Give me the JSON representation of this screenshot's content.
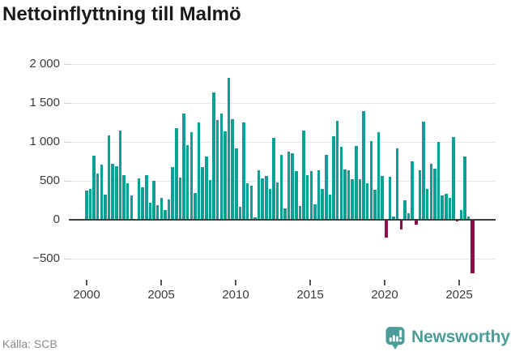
{
  "title": "Nettoinflyttning till Malmö",
  "source": "Källa: SCB",
  "brand": {
    "name": "Newsworthy"
  },
  "colors": {
    "positive_bar": "#0aa096",
    "negative_bar": "#8b1049",
    "grid": "#e7e7e7",
    "zero_line": "#3d3d3d",
    "axis_text": "#3c3c3c",
    "title_text": "#1a1a1a",
    "source_text": "#8a8a8a",
    "brand_teal": "#4d9c97"
  },
  "y_axis": {
    "labels": [
      "2 000",
      "1 500",
      "1 000",
      "500",
      "0",
      "−500"
    ],
    "values": [
      2000,
      1500,
      1000,
      500,
      0,
      -500
    ]
  },
  "x_axis": {
    "labels": [
      "2000",
      "2005",
      "2010",
      "2015",
      "2020",
      "2025"
    ],
    "tick_quarter_indices": [
      0,
      20,
      40,
      60,
      80,
      100
    ]
  },
  "chart_data": {
    "type": "bar",
    "title": "Nettoinflyttning till Malmö",
    "xlabel": "",
    "ylabel": "",
    "ylim": [
      -750,
      2000
    ],
    "grid": "horizontal",
    "legend": "none",
    "source": "SCB",
    "categories": [
      "2000Q1",
      "2000Q2",
      "2000Q3",
      "2000Q4",
      "2001Q1",
      "2001Q2",
      "2001Q3",
      "2001Q4",
      "2002Q1",
      "2002Q2",
      "2002Q3",
      "2002Q4",
      "2003Q1",
      "2003Q2",
      "2003Q3",
      "2003Q4",
      "2004Q1",
      "2004Q2",
      "2004Q3",
      "2004Q4",
      "2005Q1",
      "2005Q2",
      "2005Q3",
      "2005Q4",
      "2006Q1",
      "2006Q2",
      "2006Q3",
      "2006Q4",
      "2007Q1",
      "2007Q2",
      "2007Q3",
      "2007Q4",
      "2008Q1",
      "2008Q2",
      "2008Q3",
      "2008Q4",
      "2009Q1",
      "2009Q2",
      "2009Q3",
      "2009Q4",
      "2010Q1",
      "2010Q2",
      "2010Q3",
      "2010Q4",
      "2011Q1",
      "2011Q2",
      "2011Q3",
      "2011Q4",
      "2012Q1",
      "2012Q2",
      "2012Q3",
      "2012Q4",
      "2013Q1",
      "2013Q2",
      "2013Q3",
      "2013Q4",
      "2014Q1",
      "2014Q2",
      "2014Q3",
      "2014Q4",
      "2015Q1",
      "2015Q2",
      "2015Q3",
      "2015Q4",
      "2016Q1",
      "2016Q2",
      "2016Q3",
      "2016Q4",
      "2017Q1",
      "2017Q2",
      "2017Q3",
      "2017Q4",
      "2018Q1",
      "2018Q2",
      "2018Q3",
      "2018Q4",
      "2019Q1",
      "2019Q2",
      "2019Q3",
      "2019Q4",
      "2020Q1",
      "2020Q2",
      "2020Q3",
      "2020Q4",
      "2021Q1",
      "2021Q2",
      "2021Q3",
      "2021Q4",
      "2022Q1",
      "2022Q2",
      "2022Q3",
      "2022Q4",
      "2023Q1",
      "2023Q2",
      "2023Q3",
      "2023Q4",
      "2024Q1",
      "2024Q2",
      "2024Q3",
      "2024Q4",
      "2025Q1",
      "2025Q2",
      "2025Q3",
      "2025Q4"
    ],
    "values": [
      370,
      395,
      825,
      595,
      705,
      325,
      1080,
      720,
      685,
      1150,
      575,
      470,
      315,
      10,
      535,
      420,
      570,
      215,
      505,
      185,
      280,
      120,
      260,
      680,
      1180,
      540,
      1360,
      960,
      1125,
      340,
      1250,
      680,
      810,
      515,
      1635,
      1285,
      1360,
      1140,
      1820,
      1290,
      920,
      165,
      1255,
      470,
      435,
      35,
      635,
      530,
      560,
      395,
      1055,
      480,
      835,
      150,
      880,
      850,
      630,
      180,
      1150,
      570,
      630,
      195,
      640,
      400,
      835,
      325,
      1070,
      1275,
      940,
      650,
      640,
      525,
      950,
      520,
      1400,
      465,
      1010,
      385,
      1130,
      560,
      -230,
      550,
      45,
      920,
      -120,
      250,
      80,
      750,
      -60,
      640,
      1260,
      400,
      715,
      655,
      1000,
      315,
      330,
      280,
      1065,
      -20,
      120,
      810,
      40,
      -690
    ]
  }
}
